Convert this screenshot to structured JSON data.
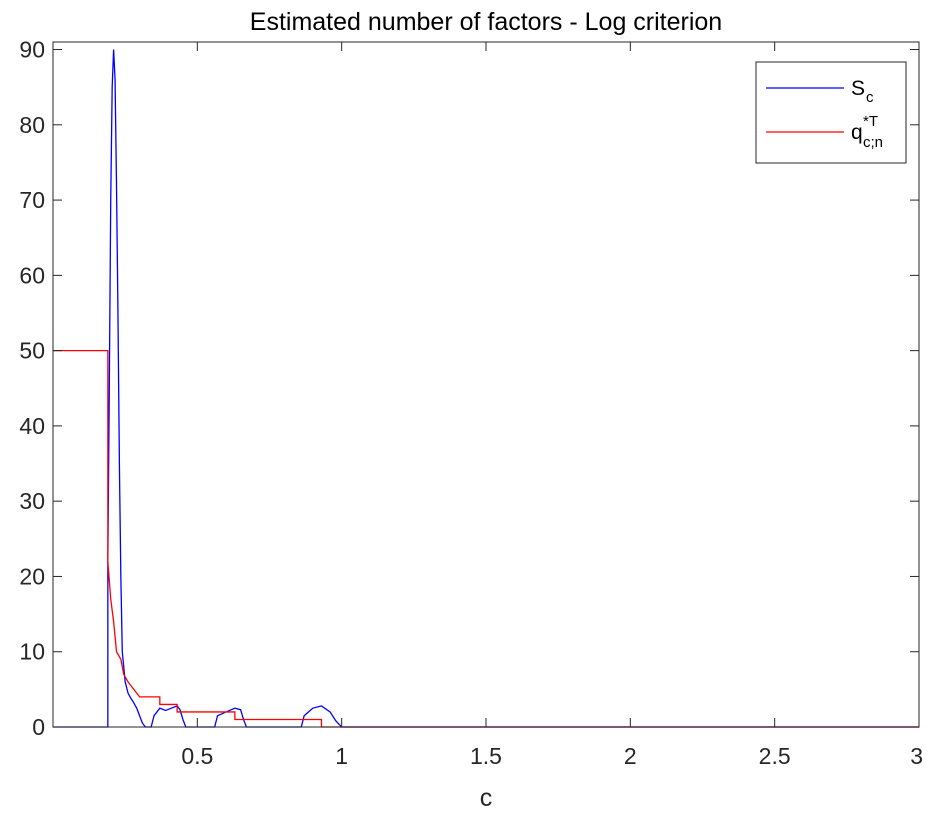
{
  "chart_data": {
    "type": "line",
    "title": "Estimated number of factors - Log criterion",
    "xlabel": "c",
    "ylabel": "",
    "xlim": [
      0.0,
      3.0
    ],
    "ylim": [
      0,
      91
    ],
    "xticks": [
      0.5,
      1,
      1.5,
      2,
      2.5,
      3
    ],
    "xtick_labels": [
      "0.5",
      "1",
      "1.5",
      "2",
      "2.5",
      "3"
    ],
    "yticks": [
      0,
      10,
      20,
      30,
      40,
      50,
      60,
      70,
      80,
      90
    ],
    "ytick_labels": [
      "0",
      "10",
      "20",
      "30",
      "40",
      "50",
      "60",
      "70",
      "80",
      "90"
    ],
    "grid": false,
    "legend_position": "top-right",
    "series": [
      {
        "name": "S_c",
        "legend_main": "S",
        "legend_sub": "c",
        "legend_sup": "",
        "color": "#0000ff",
        "points": [
          [
            0.0,
            0
          ],
          [
            0.19,
            0
          ],
          [
            0.19,
            22
          ],
          [
            0.195,
            45
          ],
          [
            0.2,
            70
          ],
          [
            0.205,
            85
          ],
          [
            0.21,
            90
          ],
          [
            0.215,
            86
          ],
          [
            0.22,
            72
          ],
          [
            0.225,
            55
          ],
          [
            0.23,
            35
          ],
          [
            0.235,
            20
          ],
          [
            0.24,
            10
          ],
          [
            0.25,
            6
          ],
          [
            0.26,
            4.5
          ],
          [
            0.27,
            3.8
          ],
          [
            0.28,
            3.2
          ],
          [
            0.29,
            2.5
          ],
          [
            0.3,
            1.5
          ],
          [
            0.31,
            0.5
          ],
          [
            0.32,
            0
          ],
          [
            0.34,
            0
          ],
          [
            0.35,
            1.5
          ],
          [
            0.37,
            2.5
          ],
          [
            0.39,
            2.2
          ],
          [
            0.41,
            2.5
          ],
          [
            0.43,
            2.8
          ],
          [
            0.44,
            2.3
          ],
          [
            0.45,
            1
          ],
          [
            0.46,
            0
          ],
          [
            0.56,
            0
          ],
          [
            0.57,
            1.5
          ],
          [
            0.6,
            2
          ],
          [
            0.63,
            2.5
          ],
          [
            0.65,
            2.3
          ],
          [
            0.66,
            1
          ],
          [
            0.67,
            0
          ],
          [
            0.86,
            0
          ],
          [
            0.87,
            1.5
          ],
          [
            0.9,
            2.5
          ],
          [
            0.93,
            2.8
          ],
          [
            0.96,
            2
          ],
          [
            0.98,
            0.8
          ],
          [
            1.0,
            0
          ],
          [
            3.0,
            0
          ]
        ]
      },
      {
        "name": "q*T c;n",
        "legend_main": "q",
        "legend_sub": "c;n",
        "legend_sup": "*T",
        "color": "#ff0000",
        "points": [
          [
            0.0,
            50
          ],
          [
            0.19,
            50
          ],
          [
            0.19,
            22
          ],
          [
            0.2,
            17
          ],
          [
            0.21,
            14
          ],
          [
            0.22,
            10
          ],
          [
            0.235,
            9
          ],
          [
            0.245,
            7
          ],
          [
            0.26,
            6
          ],
          [
            0.28,
            5
          ],
          [
            0.3,
            4
          ],
          [
            0.37,
            4
          ],
          [
            0.37,
            3
          ],
          [
            0.43,
            3
          ],
          [
            0.43,
            2
          ],
          [
            0.63,
            2
          ],
          [
            0.63,
            1
          ],
          [
            0.93,
            1
          ],
          [
            0.93,
            0
          ],
          [
            3.0,
            0
          ]
        ]
      }
    ]
  }
}
